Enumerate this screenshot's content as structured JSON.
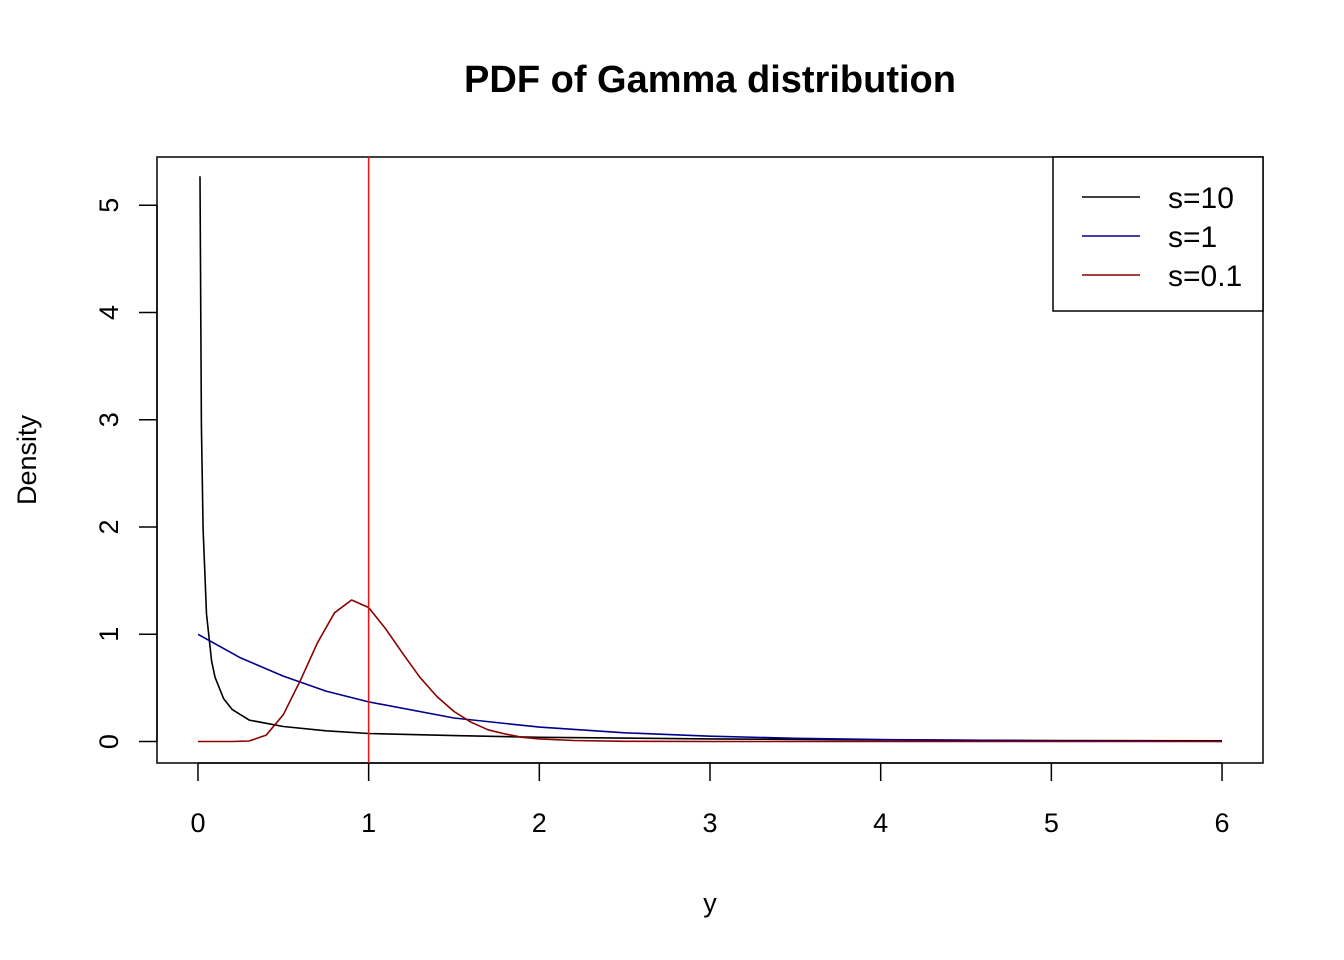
{
  "chart_data": {
    "type": "line",
    "title": "PDF of Gamma distribution",
    "xlabel": "y",
    "ylabel": "Density",
    "xlim": [
      -0.24,
      6.24
    ],
    "ylim": [
      -0.2,
      5.45
    ],
    "x_ticks": [
      0,
      1,
      2,
      3,
      4,
      5,
      6
    ],
    "y_ticks": [
      0,
      1,
      2,
      3,
      4,
      5
    ],
    "x_tick_labels": [
      "0",
      "1",
      "2",
      "3",
      "4",
      "5",
      "6"
    ],
    "y_tick_labels": [
      "0",
      "1",
      "2",
      "3",
      "4",
      "5"
    ],
    "grid": false,
    "legend_position": "top-right",
    "vline": {
      "x": 1,
      "color": "#e31a1c"
    },
    "series": [
      {
        "name": "s=10",
        "color": "#000000",
        "x": [
          0.012,
          0.02,
          0.03,
          0.05,
          0.08,
          0.1,
          0.15,
          0.2,
          0.3,
          0.5,
          0.75,
          1,
          1.5,
          2,
          3,
          4,
          5,
          6
        ],
        "y": [
          5.27,
          2.95,
          1.98,
          1.19,
          0.75,
          0.6,
          0.4,
          0.3,
          0.2,
          0.14,
          0.1,
          0.075,
          0.055,
          0.04,
          0.025,
          0.015,
          0.01,
          0.007
        ]
      },
      {
        "name": "s=1",
        "color": "#00008b",
        "x": [
          0,
          0.25,
          0.5,
          0.75,
          1,
          1.5,
          2,
          2.5,
          3,
          3.5,
          4,
          5,
          6
        ],
        "y": [
          1.0,
          0.78,
          0.61,
          0.47,
          0.37,
          0.22,
          0.135,
          0.082,
          0.05,
          0.03,
          0.018,
          0.007,
          0.0025
        ]
      },
      {
        "name": "s=0.1",
        "color": "#8b0000",
        "x": [
          0,
          0.2,
          0.3,
          0.4,
          0.5,
          0.6,
          0.7,
          0.8,
          0.9,
          1.0,
          1.1,
          1.2,
          1.3,
          1.4,
          1.5,
          1.6,
          1.7,
          1.8,
          1.9,
          2.0,
          2.2,
          2.5,
          3,
          4,
          5,
          6
        ],
        "y": [
          0,
          0.0,
          0.005,
          0.06,
          0.25,
          0.57,
          0.92,
          1.2,
          1.32,
          1.25,
          1.05,
          0.82,
          0.6,
          0.42,
          0.28,
          0.18,
          0.11,
          0.07,
          0.04,
          0.025,
          0.01,
          0.002,
          0,
          0,
          0,
          0
        ]
      }
    ]
  }
}
